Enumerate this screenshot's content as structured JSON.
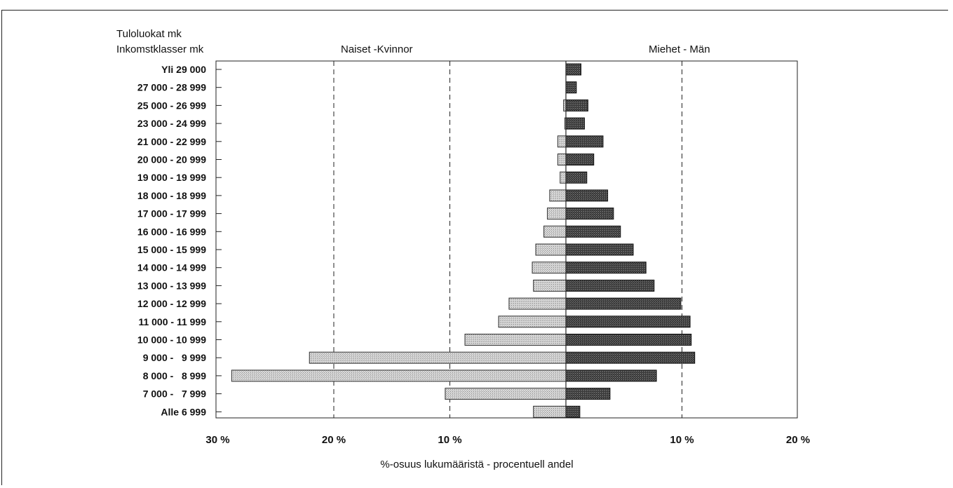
{
  "chart_data": {
    "type": "bar",
    "orientation": "horizontal-population-pyramid",
    "title_left": "Tuloluokat mk",
    "title_left_2": "Inkomstklasser mk",
    "left_header": "Naiset -Kvinnor",
    "right_header": "Miehet - Män",
    "xlabel": "%-osuus lukumääristä - procentuell andel",
    "x_ticks_left": [
      "30 %",
      "20 %",
      "10 %"
    ],
    "x_ticks_right": [
      "10 %",
      "20 %"
    ],
    "xlim_left": [
      0,
      30
    ],
    "xlim_right": [
      0,
      20
    ],
    "gridlines_at": [
      20,
      10
    ],
    "categories": [
      "Yli 29 000",
      "27 000 - 28 999",
      "25 000 - 26 999",
      "23 000 - 24 999",
      "21 000 - 22 999",
      "20 000 - 20 999",
      "19 000 - 19 999",
      "18 000 - 18 999",
      "17 000 - 17 999",
      "16 000 - 16 999",
      "15 000 - 15 999",
      "14 000 - 14 999",
      "13 000 - 13 999",
      "12 000 - 12 999",
      "11 000 - 11 999",
      "10 000 - 10 999",
      "9 000 -   9 999",
      "8 000 -   8 999",
      "7 000 -   7 999",
      "Alle 6 999"
    ],
    "series": [
      {
        "name": "Naiset -Kvinnor",
        "color": "#c9c9c9",
        "values": [
          0.0,
          0.0,
          0.2,
          0.1,
          0.7,
          0.7,
          0.5,
          1.4,
          1.6,
          1.9,
          2.6,
          2.9,
          2.8,
          4.9,
          5.8,
          8.7,
          22.1,
          28.8,
          10.4,
          2.8
        ]
      },
      {
        "name": "Miehet - Män",
        "color": "#3a3a3a",
        "values": [
          1.3,
          0.9,
          1.9,
          1.6,
          3.2,
          2.4,
          1.8,
          3.6,
          4.1,
          4.7,
          5.8,
          6.9,
          7.6,
          9.9,
          10.7,
          10.8,
          11.1,
          7.8,
          3.8,
          1.2
        ]
      }
    ]
  }
}
